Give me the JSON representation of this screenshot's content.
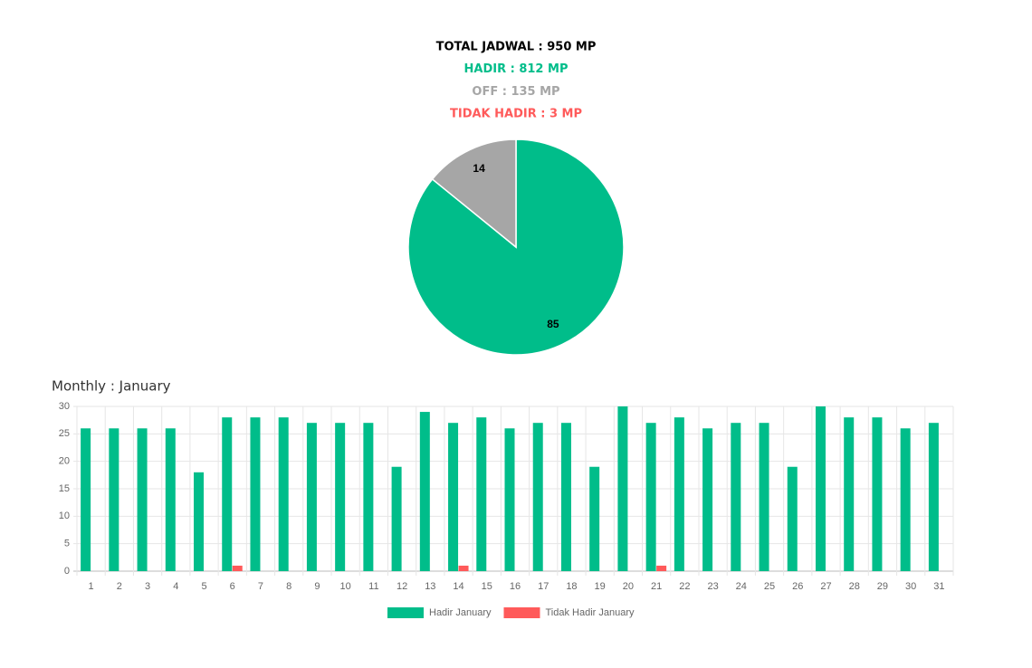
{
  "header": {
    "lines": [
      "TOTAL JADWAL : 950 MP",
      "HADIR : 812 MP",
      "OFF : 135 MP",
      "TIDAK HADIR : 3 MP"
    ],
    "colors": [
      "#000000",
      "#00bd8a",
      "#a6a6a6",
      "#ff5a5a"
    ]
  },
  "chart_data": [
    {
      "type": "pie",
      "values": [
        85,
        14
      ],
      "colors": [
        "#00bd8a",
        "#a6a6a6"
      ]
    },
    {
      "type": "bar",
      "title": "Monthly : January",
      "categories": [
        "1",
        "2",
        "3",
        "4",
        "5",
        "6",
        "7",
        "8",
        "9",
        "10",
        "11",
        "12",
        "13",
        "14",
        "15",
        "16",
        "17",
        "18",
        "19",
        "20",
        "21",
        "22",
        "23",
        "24",
        "25",
        "26",
        "27",
        "28",
        "29",
        "30",
        "31"
      ],
      "series": [
        {
          "name": "Hadir January",
          "color": "#00bd8a",
          "values": [
            26,
            26,
            26,
            26,
            18,
            28,
            28,
            28,
            27,
            27,
            27,
            19,
            29,
            27,
            28,
            26,
            27,
            27,
            19,
            30,
            27,
            28,
            26,
            27,
            27,
            19,
            30,
            28,
            28,
            26,
            27
          ]
        },
        {
          "name": "Tidak Hadir January",
          "color": "#ff5a5a",
          "values": [
            0,
            0,
            0,
            0,
            0,
            1,
            0,
            0,
            0,
            0,
            0,
            0,
            0,
            1,
            0,
            0,
            0,
            0,
            0,
            0,
            1,
            0,
            0,
            0,
            0,
            0,
            0,
            0,
            0,
            0,
            0
          ]
        }
      ],
      "ylim": [
        0,
        30
      ],
      "yticks": [
        0,
        5,
        10,
        15,
        20,
        25,
        30
      ],
      "grid": true,
      "legend": "bottom"
    }
  ]
}
